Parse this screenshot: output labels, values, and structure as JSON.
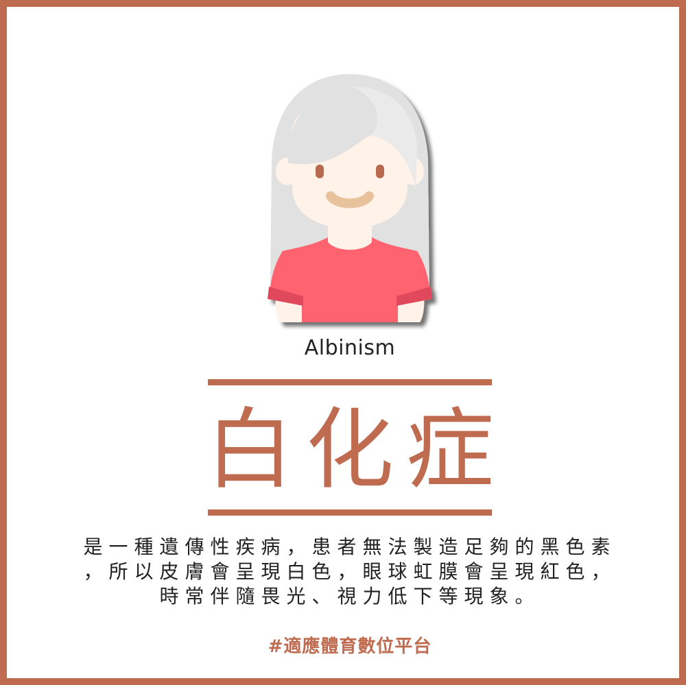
{
  "subtitle": "Albinism",
  "title": "白化症",
  "description": {
    "lines": [
      "是一種遺傳性疾病，患者無法製造足夠的黑色素",
      "，所以皮膚會呈現白色，眼球虹膜會呈現紅色，",
      "時常伴隨畏光、視力低下等現象。"
    ]
  },
  "hashtag": "#適應體育數位平台",
  "colors": {
    "accent": "#bf6b50",
    "hair": "#e1e1e1",
    "skin": "#fff2e8",
    "shirt": "#ff6370",
    "text": "#222222"
  },
  "illustration": {
    "icon": "albino-girl-icon"
  }
}
